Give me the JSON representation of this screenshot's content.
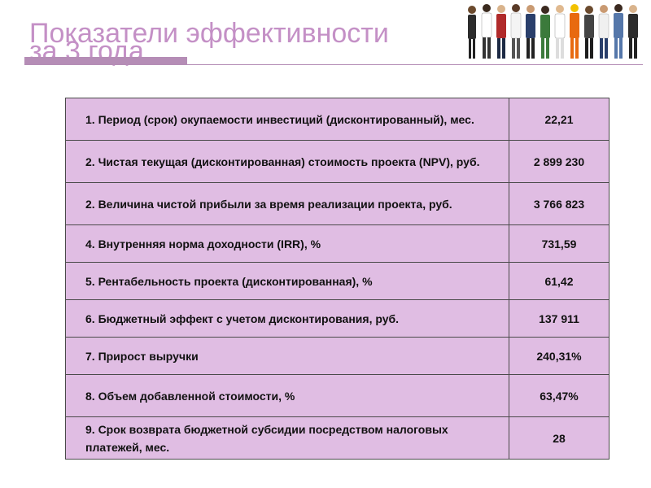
{
  "slide": {
    "title_line1": "Показатели эффективности",
    "title_line2": "за 3 года"
  },
  "header_image": {
    "icon": "people-group-photo"
  },
  "colors": {
    "title": "#c490c6",
    "accent": "#b58db6",
    "cell_fill": "#e0bde3",
    "border": "#4a4a4a"
  },
  "metrics": [
    {
      "label": "1. Период (срок) окупаемости инвестиций (дисконтированный), мес.",
      "value": "22,21"
    },
    {
      "label": "2. Чистая текущая (дисконтированная) стоимость проекта (NPV), руб.",
      "value": "2 899 230"
    },
    {
      "label": "2.  Величина чистой прибыли за время реализации проекта, руб.",
      "value": "3 766 823"
    },
    {
      "label": "4. Внутренняя норма доходности (IRR), %",
      "value": "731,59"
    },
    {
      "label": "5. Рентабельность проекта (дисконтированная), %",
      "value": "61,42"
    },
    {
      "label": "6. Бюджетный эффект с учетом дисконтирования, руб.",
      "value": "137 911"
    },
    {
      "label": "7. Прирост выручки",
      "value": "240,31%"
    },
    {
      "label": "8. Объем добавленной стоимости, %",
      "value": "63,47%"
    },
    {
      "label": "9. Срок возврата бюджетной субсидии посредством налоговых платежей, мес.",
      "value": "28"
    }
  ]
}
